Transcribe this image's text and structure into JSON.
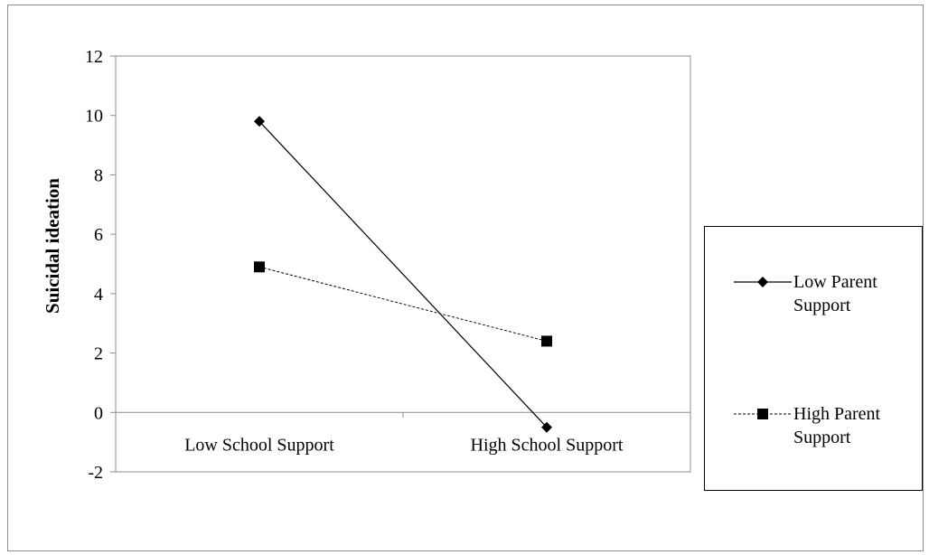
{
  "chart_data": {
    "type": "line",
    "title": "",
    "xlabel": "",
    "ylabel": "Suicidal ideation",
    "categories": [
      "Low School Support",
      "High School Support"
    ],
    "ylim": [
      -2,
      12
    ],
    "yticks": [
      -2,
      0,
      2,
      4,
      6,
      8,
      10,
      12
    ],
    "ytick_labels": [
      "-2",
      "0",
      "2",
      "4",
      "6",
      "8",
      "10",
      "12"
    ],
    "grid": false,
    "legend_position": "right",
    "series": [
      {
        "name": "Low Parent Support",
        "values": [
          9.8,
          -0.5
        ],
        "marker": "diamond",
        "line_style": "solid",
        "color": "#000000"
      },
      {
        "name": "High Parent Support",
        "values": [
          4.9,
          2.4
        ],
        "marker": "square",
        "line_style": "dashed",
        "color": "#000000"
      }
    ]
  }
}
